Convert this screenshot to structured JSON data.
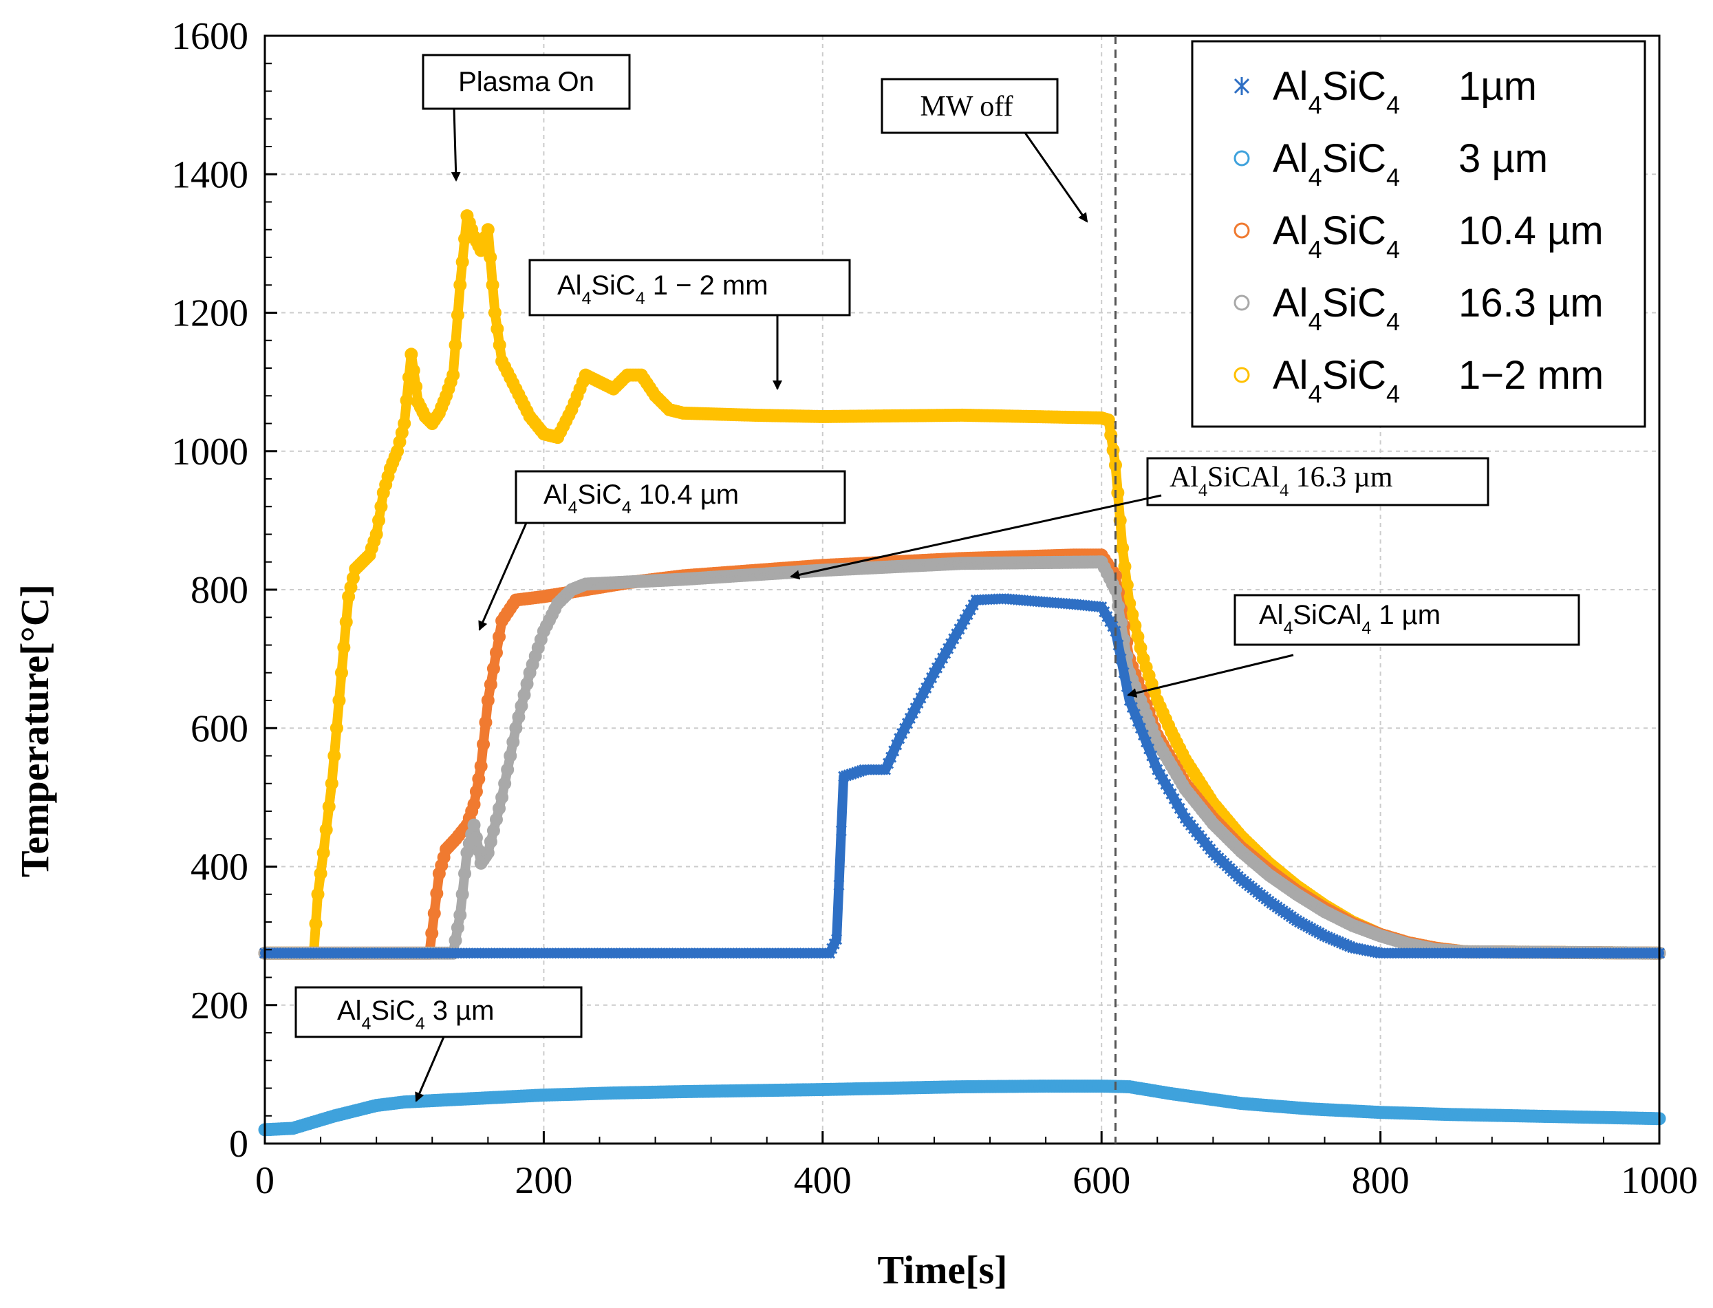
{
  "chart_data": {
    "type": "scatter",
    "title": "",
    "xlabel": "Time[s]",
    "ylabel": "Temperature[°C]",
    "xlim": [
      0,
      1000
    ],
    "ylim": [
      0,
      1600
    ],
    "xticks": [
      "0",
      "200",
      "400",
      "600",
      "800",
      "1000"
    ],
    "yticks": [
      "0",
      "200",
      "400",
      "600",
      "800",
      "1000",
      "1200",
      "1400",
      "1600"
    ],
    "grid": true,
    "legend_position": "top-right",
    "legend": [
      {
        "label": "Al4SiC4",
        "base": "Al",
        "sub1": "4",
        "mid": "SiC",
        "sub2": "4",
        "size": "1µm",
        "series": 0
      },
      {
        "label": "Al4SiC4",
        "base": "Al",
        "sub1": "4",
        "mid": "SiC",
        "sub2": "4",
        "size": "3 µm",
        "series": 1
      },
      {
        "label": "Al4SiC4",
        "base": "Al",
        "sub1": "4",
        "mid": "SiC",
        "sub2": "4",
        "size": "10.4  µm",
        "series": 2
      },
      {
        "label": "Al4SiC4",
        "base": "Al",
        "sub1": "4",
        "mid": "SiC",
        "sub2": "4",
        "size": "16.3  µm",
        "series": 3
      },
      {
        "label": "Al4SiC4",
        "base": "Al",
        "sub1": "4",
        "mid": "SiC",
        "sub2": "4",
        "size": "1−2  mm",
        "series": 4
      }
    ],
    "series": [
      {
        "name": "Al4SiC4 1µm",
        "marker": "x",
        "color": "#2e6fc4",
        "x": [
          0,
          405,
          410,
          415,
          430,
          445,
          455,
          480,
          510,
          530,
          560,
          580,
          600,
          610,
          620,
          640,
          660,
          680,
          700,
          720,
          740,
          760,
          780,
          800,
          1000
        ],
        "y": [
          275,
          275,
          295,
          530,
          540,
          540,
          585,
          680,
          785,
          787,
          782,
          779,
          775,
          740,
          640,
          540,
          470,
          420,
          382,
          350,
          322,
          300,
          283,
          275,
          275
        ]
      },
      {
        "name": "Al4SiC4 3 µm",
        "marker": "o",
        "color": "#3fa2dc",
        "x": [
          0,
          20,
          50,
          80,
          100,
          150,
          200,
          250,
          300,
          400,
          500,
          560,
          600,
          620,
          650,
          700,
          750,
          800,
          850,
          900,
          950,
          1000
        ],
        "y": [
          20,
          22,
          40,
          55,
          60,
          65,
          70,
          73,
          75,
          78,
          82,
          83,
          83,
          82,
          72,
          58,
          50,
          45,
          42,
          40,
          38,
          36
        ]
      },
      {
        "name": "Al4SiC4 10.4 µm",
        "marker": "o",
        "color": "#f07a30",
        "x": [
          0,
          118,
          125,
          130,
          137,
          145,
          150,
          155,
          160,
          170,
          180,
          200,
          230,
          260,
          300,
          400,
          500,
          580,
          600,
          610,
          620,
          640,
          660,
          680,
          700,
          720,
          740,
          760,
          780,
          800,
          820,
          840,
          860,
          1000
        ],
        "y": [
          275,
          275,
          390,
          425,
          440,
          460,
          490,
          545,
          640,
          755,
          785,
          790,
          800,
          810,
          820,
          835,
          845,
          850,
          850,
          820,
          700,
          590,
          520,
          470,
          428,
          395,
          365,
          340,
          318,
          302,
          290,
          282,
          277,
          275
        ]
      },
      {
        "name": "Al4SiC4 16.3 µm",
        "marker": "o",
        "color": "#a9a9a9",
        "x": [
          0,
          135,
          140,
          145,
          150,
          155,
          160,
          170,
          180,
          190,
          200,
          210,
          220,
          230,
          250,
          300,
          400,
          500,
          600,
          610,
          620,
          640,
          660,
          680,
          700,
          720,
          740,
          760,
          780,
          800,
          820,
          840,
          860,
          1000
        ],
        "y": [
          275,
          275,
          330,
          420,
          460,
          405,
          420,
          500,
          600,
          680,
          740,
          780,
          800,
          808,
          810,
          815,
          828,
          838,
          840,
          800,
          680,
          580,
          512,
          462,
          422,
          388,
          360,
          335,
          315,
          300,
          288,
          280,
          277,
          275
        ]
      },
      {
        "name": "Al4SiC4 1-2 mm",
        "marker": "o",
        "color": "#ffc000",
        "x": [
          0,
          35,
          38,
          42,
          48,
          55,
          60,
          65,
          70,
          75,
          80,
          85,
          90,
          95,
          100,
          105,
          110,
          115,
          120,
          125,
          130,
          135,
          140,
          145,
          150,
          155,
          160,
          165,
          170,
          180,
          190,
          200,
          210,
          220,
          230,
          240,
          250,
          260,
          270,
          280,
          290,
          300,
          350,
          400,
          500,
          600,
          605,
          610,
          615,
          620,
          630,
          640,
          650,
          660,
          680,
          700,
          720,
          740,
          760,
          780,
          800,
          820,
          840,
          860,
          1000
        ],
        "y": [
          275,
          275,
          360,
          420,
          520,
          680,
          790,
          830,
          840,
          850,
          880,
          940,
          975,
          1000,
          1040,
          1140,
          1070,
          1050,
          1040,
          1055,
          1080,
          1110,
          1240,
          1340,
          1310,
          1290,
          1320,
          1200,
          1130,
          1090,
          1050,
          1025,
          1020,
          1060,
          1110,
          1100,
          1090,
          1110,
          1110,
          1080,
          1060,
          1055,
          1052,
          1050,
          1052,
          1048,
          1045,
          980,
          860,
          780,
          700,
          640,
          595,
          555,
          492,
          444,
          405,
          372,
          344,
          320,
          302,
          290,
          282,
          277,
          275
        ]
      }
    ],
    "vline": {
      "x": 610,
      "style": "dashed"
    },
    "annotations": [
      {
        "id": "plasma-on",
        "base": "",
        "sub1": "",
        "mid": "",
        "sub2": "",
        "text": "Plasma On",
        "size": ""
      },
      {
        "id": "mw-off",
        "base": "",
        "sub1": "",
        "mid": "",
        "sub2": "",
        "text": "MW off",
        "size": ""
      },
      {
        "id": "ann-1-2mm",
        "base": "Al",
        "sub1": "4",
        "mid": "SiC",
        "sub2": "4",
        "text": "",
        "size": "1 − 2 mm"
      },
      {
        "id": "ann-10-4",
        "base": "Al",
        "sub1": "4",
        "mid": "SiC",
        "sub2": "4",
        "text": "",
        "size": "10.4 µm"
      },
      {
        "id": "ann-16-3",
        "base": "Al",
        "sub1": "4",
        "mid": "SiCAl",
        "sub2": "4",
        "text": "",
        "size": "16.3 µm"
      },
      {
        "id": "ann-1um",
        "base": "Al",
        "sub1": "4",
        "mid": "SiCAl",
        "sub2": "4",
        "text": "",
        "size": "1  µm"
      },
      {
        "id": "ann-3um",
        "base": "Al",
        "sub1": "4",
        "mid": "SiC",
        "sub2": "4",
        "text": "",
        "size": "3 µm"
      }
    ]
  }
}
